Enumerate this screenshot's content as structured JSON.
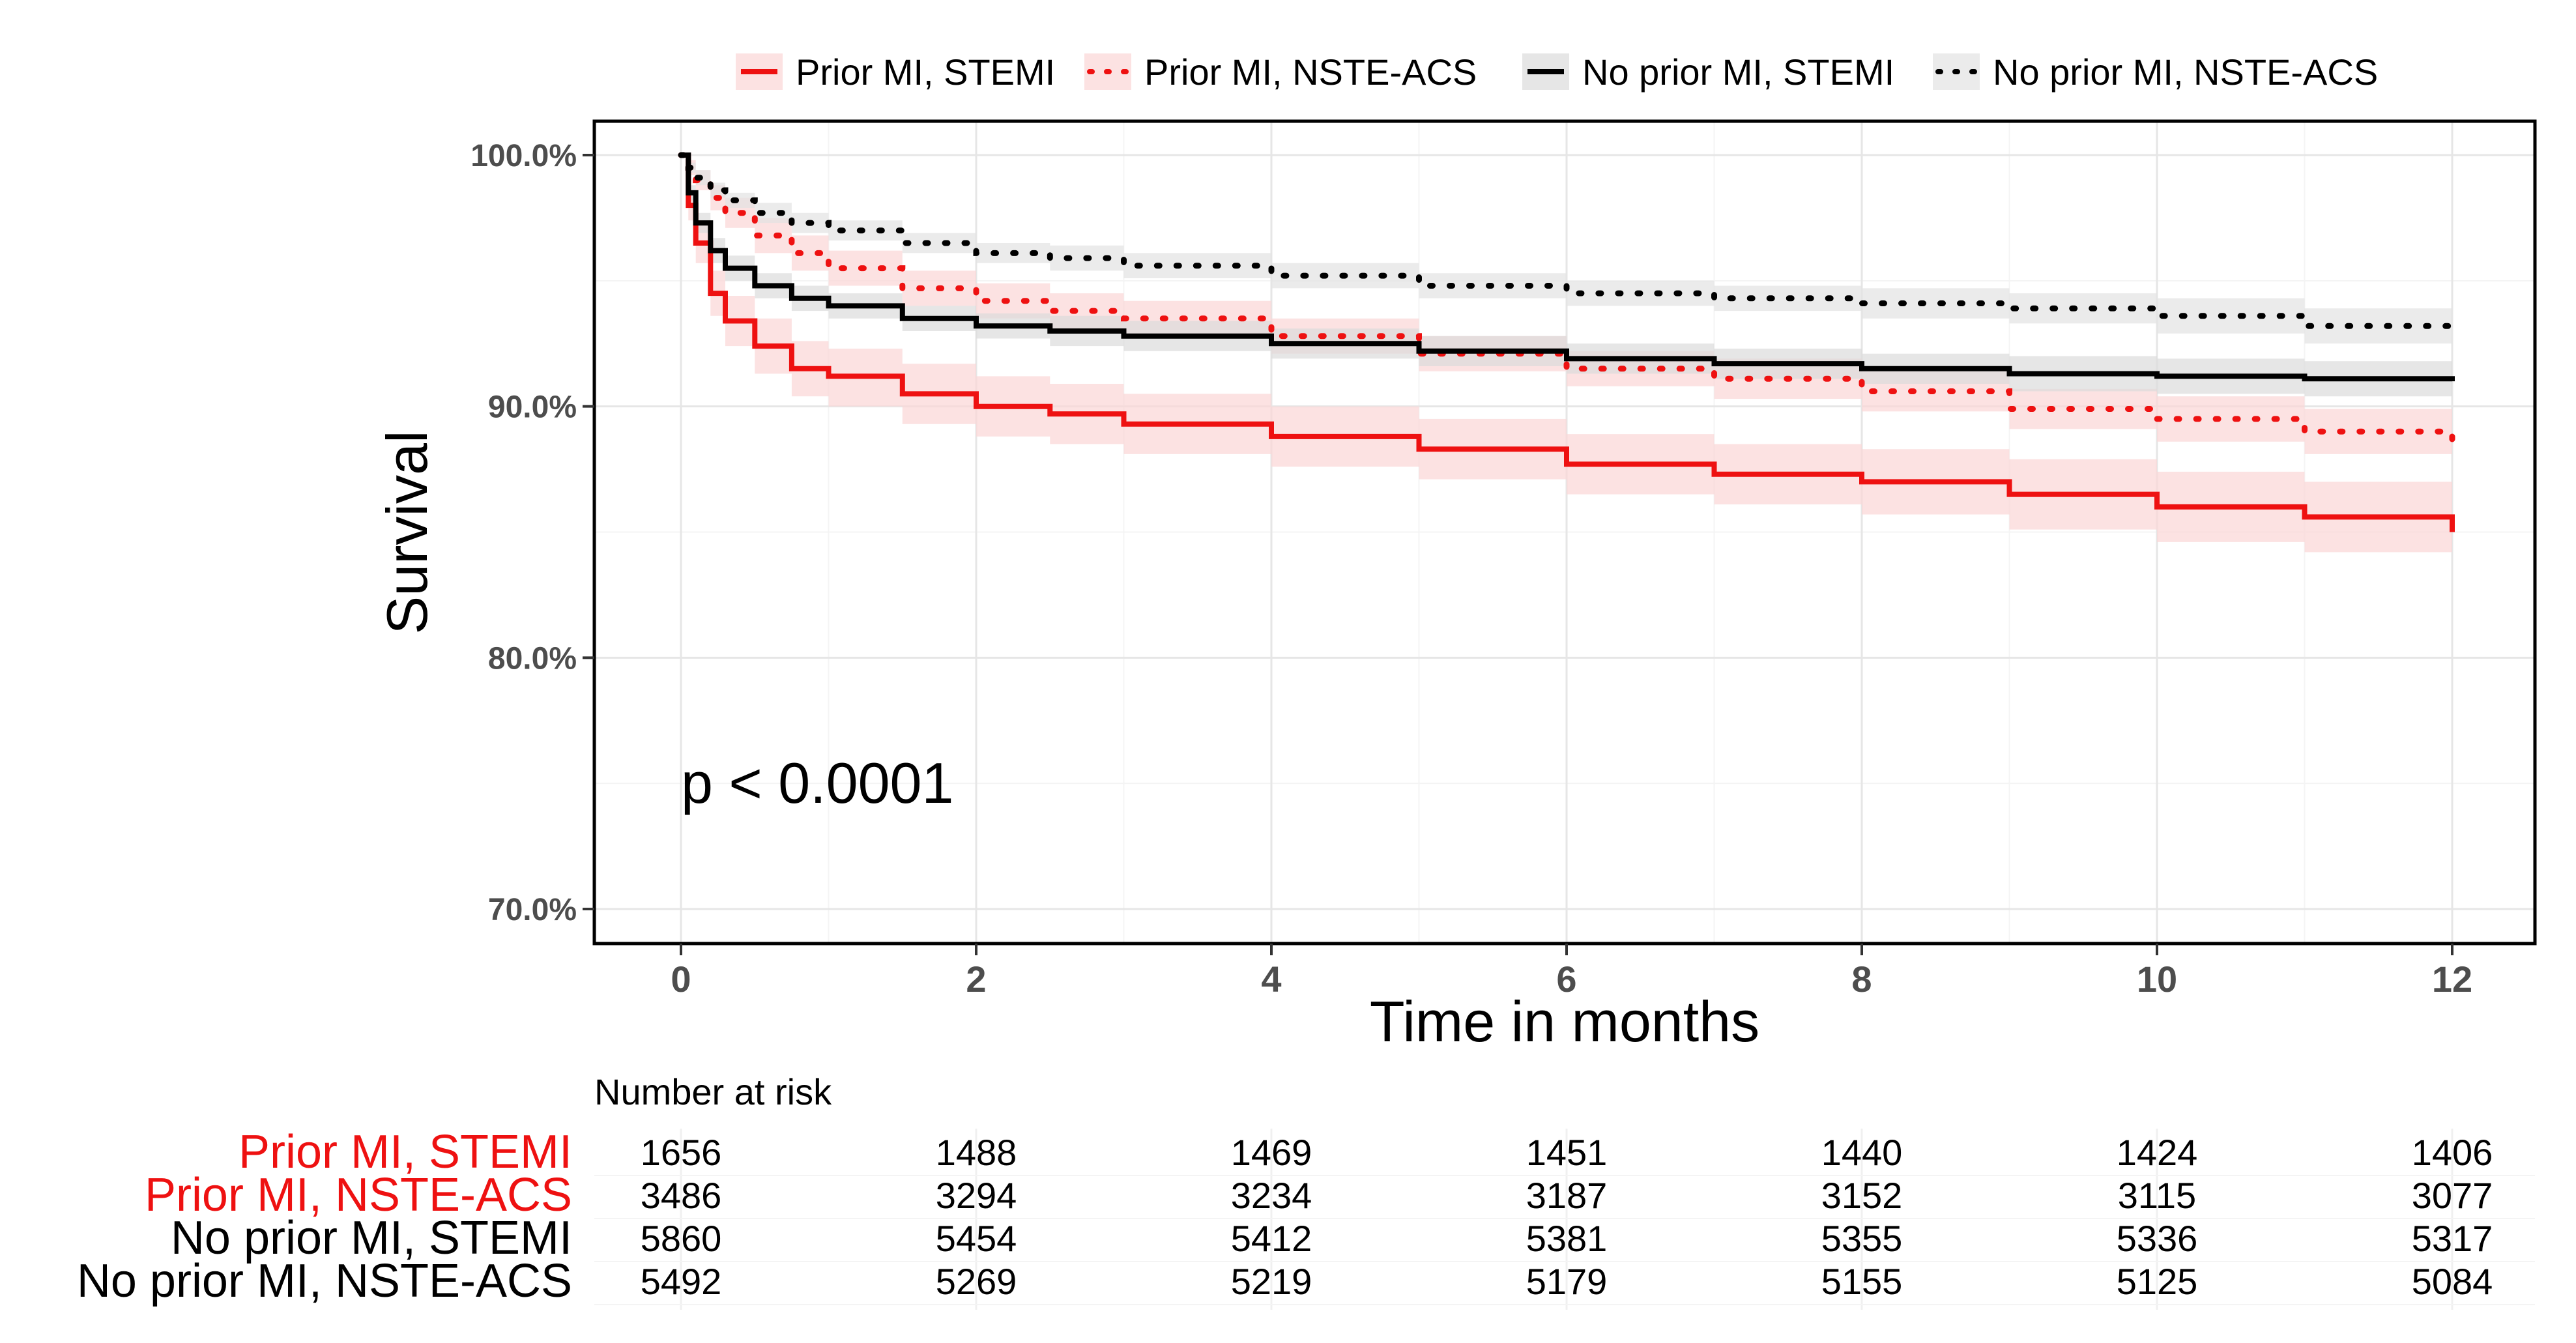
{
  "chart_data": {
    "type": "line",
    "subtype": "kaplan-meier",
    "xlabel": "Time in months",
    "ylabel": "Survival",
    "xlim": [
      0,
      12
    ],
    "ylim": [
      70,
      100
    ],
    "x_ticks": [
      0,
      2,
      4,
      6,
      8,
      10,
      12
    ],
    "x_tick_labels": [
      "0",
      "2",
      "4",
      "6",
      "8",
      "10",
      "12"
    ],
    "y_ticks": [
      70,
      80,
      90,
      100
    ],
    "y_tick_labels": [
      "70.0%",
      "80.0%",
      "90.0%",
      "100.0%"
    ],
    "grid": true,
    "legend_position": "top",
    "annotation": "p < 0.0001",
    "series": [
      {
        "name": "Prior MI, STEMI",
        "color": "#ee1111",
        "band_color": "#fbd5d5",
        "dash": "solid",
        "x": [
          0,
          0.05,
          0.1,
          0.2,
          0.3,
          0.5,
          0.75,
          1,
          1.5,
          2,
          2.5,
          3,
          4,
          5,
          6,
          7,
          8,
          9,
          10,
          11,
          12
        ],
        "values": [
          100,
          98,
          96.5,
          94.5,
          93.4,
          92.4,
          91.5,
          91.2,
          90.5,
          90,
          89.7,
          89.3,
          88.8,
          88.3,
          87.7,
          87.3,
          87,
          86.5,
          86,
          85.6,
          85
        ],
        "lower": [
          100,
          97.4,
          95.7,
          93.6,
          92.4,
          91.3,
          90.4,
          90,
          89.3,
          88.8,
          88.5,
          88.1,
          87.6,
          87.1,
          86.5,
          86.1,
          85.7,
          85.1,
          84.6,
          84.2,
          83.4
        ],
        "upper": [
          100,
          98.6,
          97.3,
          95.4,
          94.4,
          93.5,
          92.6,
          92.3,
          91.7,
          91.2,
          90.9,
          90.5,
          90,
          89.5,
          88.9,
          88.5,
          88.3,
          87.9,
          87.4,
          87,
          86.6
        ],
        "at_risk": [
          1656,
          1488,
          1469,
          1451,
          1440,
          1424,
          1406
        ]
      },
      {
        "name": "Prior MI, NSTE-ACS",
        "color": "#ee1111",
        "band_color": "#fbd5d5",
        "dash": "dotted",
        "x": [
          0,
          0.05,
          0.1,
          0.2,
          0.3,
          0.5,
          0.75,
          1,
          1.5,
          2,
          2.5,
          3,
          4,
          5,
          6,
          7,
          8,
          9,
          10,
          11,
          12
        ],
        "values": [
          100,
          99.5,
          99,
          98.3,
          97.7,
          96.8,
          96.1,
          95.5,
          94.7,
          94.2,
          93.8,
          93.5,
          92.8,
          92.1,
          91.5,
          91.1,
          90.6,
          89.9,
          89.5,
          89,
          88.3
        ],
        "lower": [
          100,
          99.2,
          98.6,
          97.8,
          97.1,
          96.1,
          95.4,
          94.8,
          94,
          93.5,
          93.1,
          92.8,
          92.1,
          91.4,
          90.8,
          90.3,
          89.8,
          89.1,
          88.6,
          88.1,
          87.3
        ],
        "upper": [
          100,
          99.8,
          99.4,
          98.8,
          98.3,
          97.5,
          96.8,
          96.2,
          95.4,
          94.9,
          94.5,
          94.2,
          93.5,
          92.8,
          92.2,
          91.9,
          91.4,
          90.7,
          90.4,
          89.9,
          89.3
        ],
        "at_risk": [
          3486,
          3294,
          3234,
          3187,
          3152,
          3115,
          3077
        ]
      },
      {
        "name": "No prior MI, STEMI",
        "color": "#000000",
        "band_color": "#dcdcdc",
        "dash": "solid",
        "x": [
          0,
          0.05,
          0.1,
          0.2,
          0.3,
          0.5,
          0.75,
          1,
          1.5,
          2,
          2.5,
          3,
          4,
          5,
          6,
          7,
          8,
          9,
          10,
          11,
          12
        ],
        "values": [
          100,
          98.5,
          97.3,
          96.2,
          95.5,
          94.8,
          94.3,
          94,
          93.5,
          93.2,
          93,
          92.8,
          92.5,
          92.2,
          91.9,
          91.7,
          91.5,
          91.3,
          91.2,
          91.1,
          91
        ],
        "lower": [
          100,
          98.2,
          96.9,
          95.7,
          95,
          94.3,
          93.8,
          93.5,
          93,
          92.7,
          92.4,
          92.2,
          91.9,
          91.6,
          91.3,
          91.1,
          90.9,
          90.6,
          90.5,
          90.4,
          90.2
        ],
        "upper": [
          100,
          98.8,
          97.7,
          96.7,
          96,
          95.3,
          94.8,
          94.5,
          94,
          93.7,
          93.6,
          93.4,
          93.1,
          92.8,
          92.5,
          92.3,
          92.1,
          92,
          91.9,
          91.8,
          91.8
        ],
        "at_risk": [
          5860,
          5454,
          5412,
          5381,
          5355,
          5336,
          5317
        ]
      },
      {
        "name": "No prior MI, NSTE-ACS",
        "color": "#000000",
        "band_color": "#e3e3e3",
        "dash": "dotted",
        "x": [
          0,
          0.05,
          0.1,
          0.2,
          0.3,
          0.5,
          0.75,
          1,
          1.5,
          2,
          2.5,
          3,
          4,
          5,
          6,
          7,
          8,
          9,
          10,
          11,
          12
        ],
        "values": [
          100,
          99.5,
          99.1,
          98.6,
          98.2,
          97.7,
          97.3,
          97,
          96.5,
          96.1,
          95.9,
          95.6,
          95.2,
          94.8,
          94.5,
          94.3,
          94.1,
          93.9,
          93.6,
          93.2,
          92.7
        ],
        "lower": [
          100,
          99.3,
          98.8,
          98.3,
          97.9,
          97.3,
          96.9,
          96.6,
          96.1,
          95.7,
          95.4,
          95.1,
          94.7,
          94.3,
          94,
          93.8,
          93.5,
          93.3,
          92.9,
          92.5,
          92
        ],
        "upper": [
          100,
          99.7,
          99.4,
          98.9,
          98.5,
          98.1,
          97.7,
          97.4,
          96.9,
          96.5,
          96.4,
          96.1,
          95.7,
          95.3,
          95,
          94.8,
          94.7,
          94.5,
          94.3,
          93.9,
          93.4
        ],
        "at_risk": [
          5492,
          5269,
          5219,
          5179,
          5155,
          5125,
          5084
        ]
      }
    ],
    "risk_table": {
      "title": "Number at risk",
      "times": [
        0,
        2,
        4,
        6,
        8,
        10,
        12
      ]
    }
  }
}
